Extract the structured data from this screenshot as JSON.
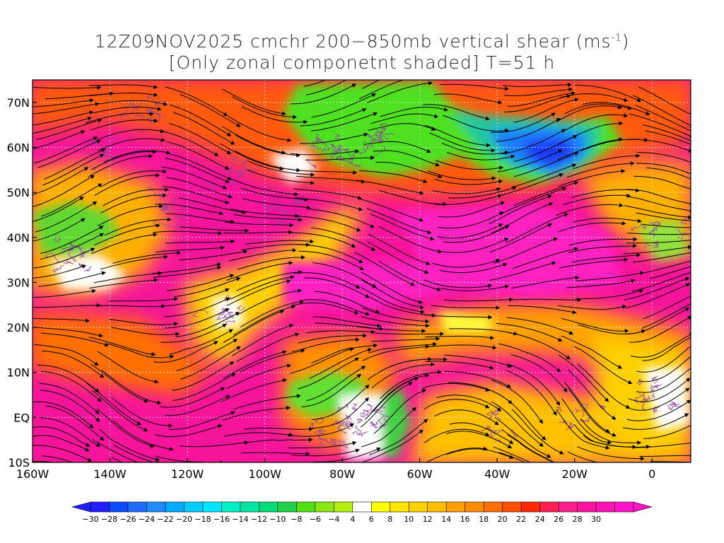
{
  "title": {
    "line1": "12Z09NOV2025 cmchr 200−850mb vertical shear (ms",
    "unit_sup": "-1",
    "line1_end": ")",
    "line2": "[Only zonal componetnt shaded] T=51 h"
  },
  "axes": {
    "lat_labels": [
      "70N",
      "60N",
      "50N",
      "40N",
      "30N",
      "20N",
      "10N",
      "EQ",
      "10S"
    ],
    "lon_labels": [
      "160W",
      "140W",
      "120W",
      "100W",
      "80W",
      "60W",
      "40W",
      "20W",
      "0"
    ],
    "lat_values": [
      70,
      60,
      50,
      40,
      30,
      20,
      10,
      0,
      -10
    ],
    "lon_values": [
      -160,
      -140,
      -120,
      -100,
      -80,
      -60,
      -40,
      -20,
      0
    ],
    "lon_range": [
      -160,
      10
    ],
    "lat_range": [
      -10,
      75
    ]
  },
  "colorbar": {
    "labels": [
      "−30",
      "−28",
      "−26",
      "−24",
      "−22",
      "−20",
      "−18",
      "−16",
      "−14",
      "−12",
      "−10",
      "−8",
      "−6",
      "−4",
      "4",
      "6",
      "8",
      "10",
      "12",
      "14",
      "16",
      "18",
      "20",
      "22",
      "24",
      "26",
      "28",
      "30"
    ],
    "colors": [
      "#1f1fff",
      "#0b4bff",
      "#1e6bff",
      "#1e8cff",
      "#00aaff",
      "#00ccff",
      "#00e6ff",
      "#00f0c8",
      "#00e6a0",
      "#00dc78",
      "#20d04a",
      "#50e014",
      "#8ce614",
      "#b4f014",
      "#ffffff",
      "#ffff00",
      "#ffe600",
      "#ffd200",
      "#ffbe00",
      "#ffa000",
      "#ff8c00",
      "#ff6e00",
      "#ff5000",
      "#ff2800",
      "#ff1e50",
      "#ff1e8c",
      "#ff14a0",
      "#ff14b4",
      "#ff14c8"
    ]
  },
  "colors": {
    "magenta": "#f6149a",
    "red": "#ff3a20",
    "orange": "#ff9000",
    "yellow": "#ffd200",
    "green": "#40d040",
    "blue": "#1f6bff",
    "purple_contours": "#9040a0"
  }
}
